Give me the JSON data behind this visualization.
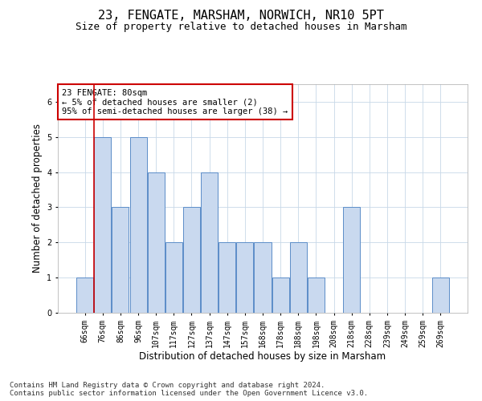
{
  "title": "23, FENGATE, MARSHAM, NORWICH, NR10 5PT",
  "subtitle": "Size of property relative to detached houses in Marsham",
  "xlabel": "Distribution of detached houses by size in Marsham",
  "ylabel": "Number of detached properties",
  "categories": [
    "66sqm",
    "76sqm",
    "86sqm",
    "96sqm",
    "107sqm",
    "117sqm",
    "127sqm",
    "137sqm",
    "147sqm",
    "157sqm",
    "168sqm",
    "178sqm",
    "188sqm",
    "198sqm",
    "208sqm",
    "218sqm",
    "228sqm",
    "239sqm",
    "249sqm",
    "259sqm",
    "269sqm"
  ],
  "values": [
    1,
    5,
    3,
    5,
    4,
    2,
    3,
    4,
    2,
    2,
    2,
    1,
    2,
    1,
    0,
    3,
    0,
    0,
    0,
    0,
    1
  ],
  "bar_color": "#c9d9ef",
  "bar_edge_color": "#5b8dc8",
  "grid_color": "#c8d8e8",
  "annotation_box_color": "#ffffff",
  "annotation_box_edge_color": "#cc0000",
  "vline_color": "#cc0000",
  "vline_x_index": 1,
  "annotation_text": "23 FENGATE: 80sqm\n← 5% of detached houses are smaller (2)\n95% of semi-detached houses are larger (38) →",
  "ylim": [
    0,
    6.5
  ],
  "yticks": [
    0,
    1,
    2,
    3,
    4,
    5,
    6
  ],
  "title_fontsize": 11,
  "subtitle_fontsize": 9,
  "xlabel_fontsize": 8.5,
  "ylabel_fontsize": 8.5,
  "tick_fontsize": 7,
  "annotation_fontsize": 7.5,
  "footnote": "Contains HM Land Registry data © Crown copyright and database right 2024.\nContains public sector information licensed under the Open Government Licence v3.0.",
  "footnote_fontsize": 6.5
}
